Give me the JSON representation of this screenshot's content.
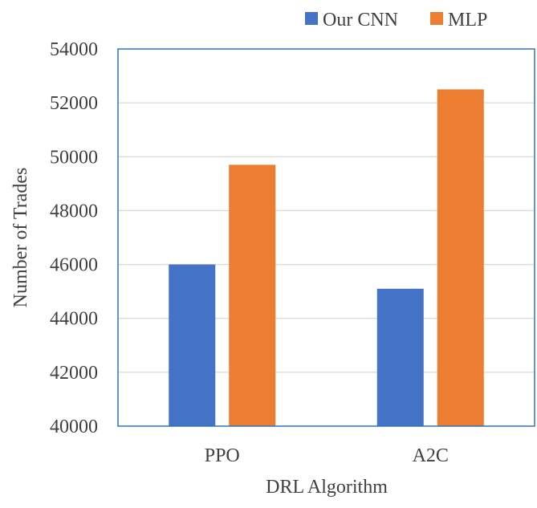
{
  "chart_data": {
    "type": "bar",
    "title": "",
    "xlabel": "DRL Algorithm",
    "ylabel": "Number of Trades",
    "categories": [
      "PPO",
      "A2C"
    ],
    "series": [
      {
        "name": "Our CNN",
        "values": [
          46000,
          45100
        ],
        "color": "#4472C4"
      },
      {
        "name": "MLP",
        "values": [
          49700,
          52500
        ],
        "color": "#ED7D31"
      }
    ],
    "ylim": [
      40000,
      54000
    ],
    "yticks": [
      40000,
      42000,
      44000,
      46000,
      48000,
      50000,
      52000,
      54000
    ],
    "grid": true,
    "legend_position": "top-right",
    "plot_border_color": "#2E75B6",
    "grid_color": "#D9D9D9"
  }
}
